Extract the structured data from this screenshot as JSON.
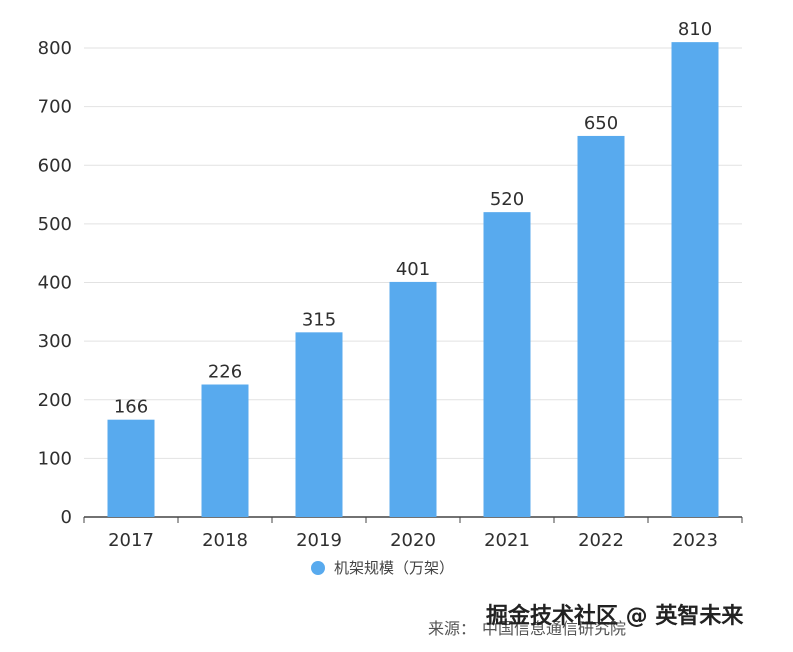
{
  "colors": {
    "bar": "#58aaee",
    "grid": "#e2e2e2",
    "axis": "#444444",
    "text": "#2f2f2f"
  },
  "chart_data": {
    "type": "bar",
    "categories": [
      "2017",
      "2018",
      "2019",
      "2020",
      "2021",
      "2022",
      "2023"
    ],
    "series": [
      {
        "name": "机架规模（万架）",
        "values": [
          166,
          226,
          315,
          401,
          520,
          650,
          810
        ]
      }
    ],
    "data_labels": [
      "166",
      "226",
      "315",
      "401",
      "520",
      "650",
      "810"
    ],
    "y_ticks": [
      "0",
      "100",
      "200",
      "300",
      "400",
      "500",
      "600",
      "700",
      "800"
    ],
    "ylim": [
      0,
      800
    ],
    "grid": true,
    "legend_position": "bottom"
  },
  "source": {
    "label": "来源：",
    "text": "中国信息通信研究院"
  },
  "watermark": {
    "text": "掘金技术社区 @ 英智未来"
  }
}
